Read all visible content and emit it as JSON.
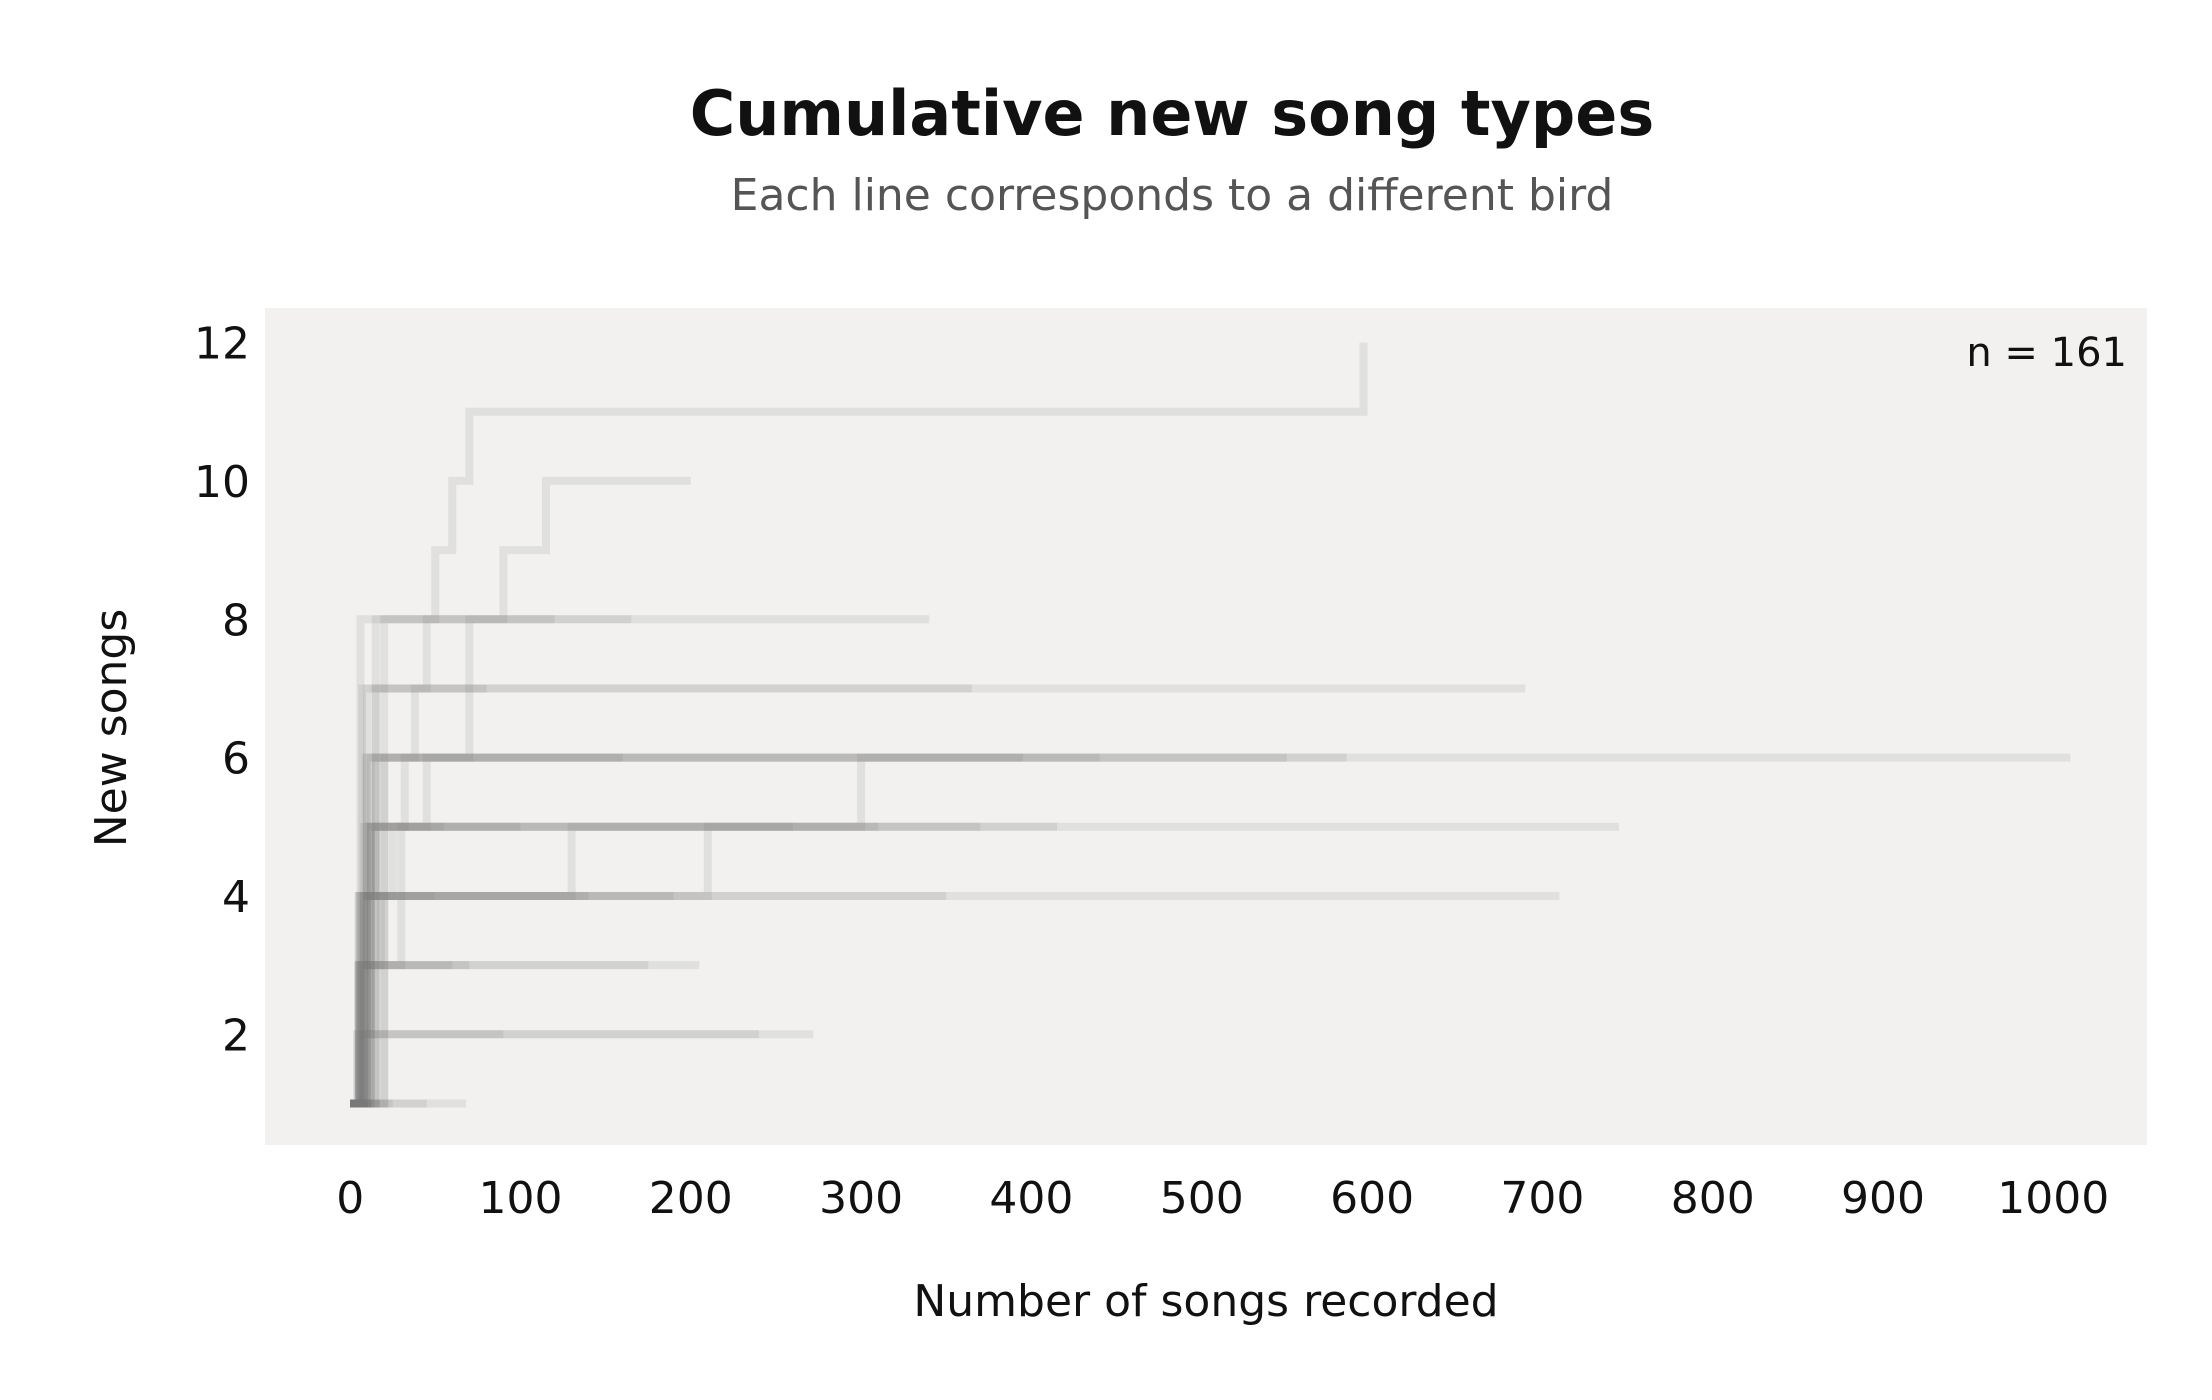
{
  "chart_data": {
    "type": "line",
    "title": "Cumulative new song types",
    "subtitle": "Each line corresponds to a different bird",
    "xlabel": "Number of songs recorded",
    "ylabel": "New songs",
    "annotation": "n = 161",
    "xlim": [
      -50,
      1055
    ],
    "ylim": [
      0.4,
      12.5
    ],
    "xticks": [
      0,
      100,
      200,
      300,
      400,
      500,
      600,
      700,
      800,
      900,
      1000
    ],
    "yticks": [
      2,
      4,
      6,
      8,
      10,
      12
    ],
    "grid": false,
    "background": "#f2f1ef",
    "line_color": "#7a7a7a",
    "series": [
      {
        "x": [
          0,
          5,
          12,
          18,
          25,
          32,
          38,
          45,
          50,
          60,
          70,
          595
        ],
        "y": [
          1,
          2,
          3,
          4,
          5,
          6,
          7,
          8,
          9,
          10,
          11,
          12
        ]
      },
      {
        "x": [
          0,
          15,
          30,
          45,
          70,
          90,
          115,
          200
        ],
        "y": [
          1,
          3,
          5,
          6,
          8,
          9,
          10,
          10
        ]
      },
      {
        "x": [
          0,
          6,
          12,
          20,
          340
        ],
        "y": [
          1,
          3,
          5,
          8,
          8
        ]
      },
      {
        "x": [
          0,
          8,
          15,
          690
        ],
        "y": [
          1,
          4,
          7,
          7
        ]
      },
      {
        "x": [
          0,
          5,
          15,
          1010
        ],
        "y": [
          1,
          3,
          6,
          6
        ]
      },
      {
        "x": [
          0,
          10,
          300,
          585
        ],
        "y": [
          1,
          5,
          6,
          6
        ]
      },
      {
        "x": [
          0,
          8,
          745
        ],
        "y": [
          1,
          5,
          5
        ]
      },
      {
        "x": [
          0,
          5,
          710
        ],
        "y": [
          1,
          4,
          4
        ]
      },
      {
        "x": [
          0,
          4,
          272
        ],
        "y": [
          1,
          2,
          2
        ]
      },
      {
        "x": [
          0,
          6,
          205
        ],
        "y": [
          1,
          3,
          3
        ]
      },
      {
        "x": [
          0,
          68
        ],
        "y": [
          1,
          1
        ]
      },
      {
        "x": [
          0,
          20,
          440
        ],
        "y": [
          1,
          6,
          6
        ]
      },
      {
        "x": [
          0,
          5,
          210,
          415
        ],
        "y": [
          1,
          4,
          5,
          5
        ]
      },
      {
        "x": [
          0,
          10,
          130,
          370
        ],
        "y": [
          1,
          4,
          5,
          5
        ]
      },
      {
        "x": [
          0,
          7,
          365
        ],
        "y": [
          1,
          7,
          7
        ]
      },
      {
        "x": [
          0,
          10,
          350
        ],
        "y": [
          1,
          4,
          4
        ]
      },
      {
        "x": [
          0,
          12,
          550
        ],
        "y": [
          1,
          6,
          6
        ]
      },
      {
        "x": [
          0,
          15,
          310
        ],
        "y": [
          1,
          5,
          5
        ]
      },
      {
        "x": [
          0,
          6,
          165
        ],
        "y": [
          1,
          8,
          8
        ]
      },
      {
        "x": [
          0,
          8,
          240
        ],
        "y": [
          1,
          2,
          2
        ]
      },
      {
        "x": [
          0,
          5,
          175
        ],
        "y": [
          1,
          3,
          3
        ]
      },
      {
        "x": [
          0,
          10,
          395
        ],
        "y": [
          1,
          6,
          6
        ]
      },
      {
        "x": [
          0,
          12,
          260
        ],
        "y": [
          1,
          5,
          5
        ]
      },
      {
        "x": [
          0,
          8,
          190
        ],
        "y": [
          1,
          4,
          4
        ]
      },
      {
        "x": [
          0,
          15,
          120
        ],
        "y": [
          1,
          8,
          8
        ]
      },
      {
        "x": [
          0,
          4,
          45
        ],
        "y": [
          1,
          1,
          1
        ]
      },
      {
        "x": [
          0,
          10,
          80
        ],
        "y": [
          1,
          7,
          7
        ]
      },
      {
        "x": [
          0,
          20,
          100
        ],
        "y": [
          1,
          5,
          5
        ]
      },
      {
        "x": [
          0,
          8,
          90
        ],
        "y": [
          1,
          2,
          2
        ]
      },
      {
        "x": [
          0,
          6,
          140
        ],
        "y": [
          1,
          4,
          4
        ]
      },
      {
        "x": [
          0,
          9,
          160
        ],
        "y": [
          1,
          6,
          6
        ]
      },
      {
        "x": [
          0,
          7,
          70
        ],
        "y": [
          1,
          3,
          3
        ]
      },
      {
        "x": [
          0,
          5,
          60
        ],
        "y": [
          1,
          3,
          3
        ]
      },
      {
        "x": [
          0,
          12,
          55
        ],
        "y": [
          1,
          5,
          5
        ]
      },
      {
        "x": [
          0,
          6,
          50
        ],
        "y": [
          1,
          4,
          4
        ]
      },
      {
        "x": [
          0,
          25
        ],
        "y": [
          1,
          1
        ]
      }
    ]
  }
}
